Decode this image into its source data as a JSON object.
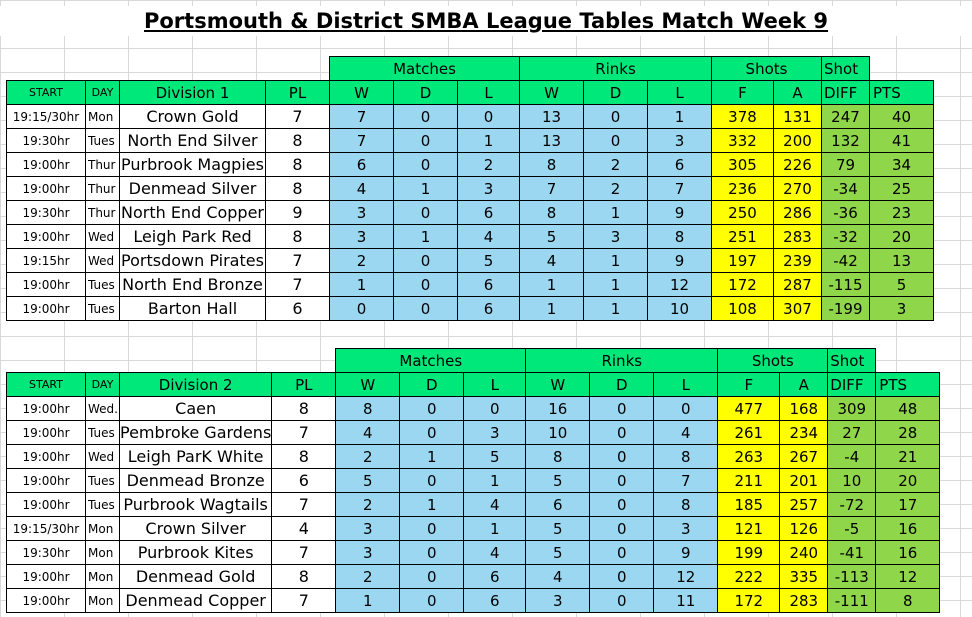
{
  "title": "Portsmouth & District SMBA League Tables Match Week 9",
  "group_headers": {
    "matches": "Matches",
    "rinks": "Rinks",
    "shots": "Shots",
    "shot_diff": "Shot"
  },
  "column_headers": {
    "start": "START",
    "day": "DAY",
    "pl": "PL",
    "w": "W",
    "d": "D",
    "l": "L",
    "f": "F",
    "a": "A",
    "diff": "DIFF",
    "pts": "PTS"
  },
  "colors": {
    "header_green": "#00e87a",
    "blue": "#9bd7f0",
    "yellow": "#ffff00",
    "green": "#8fd64a"
  },
  "divisions": [
    {
      "name": "Division 1",
      "rows": [
        {
          "start": "19:15/30hr",
          "day": "Mon",
          "team": "Crown Gold",
          "pl": "7",
          "mw": "7",
          "md": "0",
          "ml": "0",
          "rw": "13",
          "rd": "0",
          "rl": "1",
          "f": "378",
          "a": "131",
          "diff": "247",
          "pts": "40"
        },
        {
          "start": "19:30hr",
          "day": "Tues",
          "team": "North End Silver",
          "pl": "8",
          "mw": "7",
          "md": "0",
          "ml": "1",
          "rw": "13",
          "rd": "0",
          "rl": "3",
          "f": "332",
          "a": "200",
          "diff": "132",
          "pts": "41"
        },
        {
          "start": "19:00hr",
          "day": "Thur",
          "team": "Purbrook Magpies",
          "pl": "8",
          "mw": "6",
          "md": "0",
          "ml": "2",
          "rw": "8",
          "rd": "2",
          "rl": "6",
          "f": "305",
          "a": "226",
          "diff": "79",
          "pts": "34"
        },
        {
          "start": "19:00hr",
          "day": "Thur",
          "team": "Denmead Silver",
          "pl": "8",
          "mw": "4",
          "md": "1",
          "ml": "3",
          "rw": "7",
          "rd": "2",
          "rl": "7",
          "f": "236",
          "a": "270",
          "diff": "-34",
          "pts": "25"
        },
        {
          "start": "19:30hr",
          "day": "Thur",
          "team": "North End Copper",
          "pl": "9",
          "mw": "3",
          "md": "0",
          "ml": "6",
          "rw": "8",
          "rd": "1",
          "rl": "9",
          "f": "250",
          "a": "286",
          "diff": "-36",
          "pts": "23"
        },
        {
          "start": "19:00hr",
          "day": "Wed",
          "team": "Leigh Park Red",
          "pl": "8",
          "mw": "3",
          "md": "1",
          "ml": "4",
          "rw": "5",
          "rd": "3",
          "rl": "8",
          "f": "251",
          "a": "283",
          "diff": "-32",
          "pts": "20"
        },
        {
          "start": "19:15hr",
          "day": "Wed",
          "team": "Portsdown Pirates",
          "pl": "7",
          "mw": "2",
          "md": "0",
          "ml": "5",
          "rw": "4",
          "rd": "1",
          "rl": "9",
          "f": "197",
          "a": "239",
          "diff": "-42",
          "pts": "13"
        },
        {
          "start": "19:00hr",
          "day": "Tues",
          "team": "North End Bronze",
          "pl": "7",
          "mw": "1",
          "md": "0",
          "ml": "6",
          "rw": "1",
          "rd": "1",
          "rl": "12",
          "f": "172",
          "a": "287",
          "diff": "-115",
          "pts": "5"
        },
        {
          "start": "19:00hr",
          "day": "Tues",
          "team": "Barton Hall",
          "pl": "6",
          "mw": "0",
          "md": "0",
          "ml": "6",
          "rw": "1",
          "rd": "1",
          "rl": "10",
          "f": "108",
          "a": "307",
          "diff": "-199",
          "pts": "3"
        }
      ]
    },
    {
      "name": "Division 2",
      "rows": [
        {
          "start": "19:00hr",
          "day": "Wed.",
          "team": "Caen",
          "pl": "8",
          "mw": "8",
          "md": "0",
          "ml": "0",
          "rw": "16",
          "rd": "0",
          "rl": "0",
          "f": "477",
          "a": "168",
          "diff": "309",
          "pts": "48"
        },
        {
          "start": "19:00hr",
          "day": "Tues",
          "team": "Pembroke Gardens",
          "pl": "7",
          "mw": "4",
          "md": "0",
          "ml": "3",
          "rw": "10",
          "rd": "0",
          "rl": "4",
          "f": "261",
          "a": "234",
          "diff": "27",
          "pts": "28"
        },
        {
          "start": "19:00hr",
          "day": "Wed",
          "team": "Leigh ParK White",
          "pl": "8",
          "mw": "2",
          "md": "1",
          "ml": "5",
          "rw": "8",
          "rd": "0",
          "rl": "8",
          "f": "263",
          "a": "267",
          "diff": "-4",
          "pts": "21"
        },
        {
          "start": "19:00hr",
          "day": "Tues",
          "team": "Denmead Bronze",
          "pl": "6",
          "mw": "5",
          "md": "0",
          "ml": "1",
          "rw": "5",
          "rd": "0",
          "rl": "7",
          "f": "211",
          "a": "201",
          "diff": "10",
          "pts": "20"
        },
        {
          "start": "19:00hr",
          "day": "Tues",
          "team": "Purbrook Wagtails",
          "pl": "7",
          "mw": "2",
          "md": "1",
          "ml": "4",
          "rw": "6",
          "rd": "0",
          "rl": "8",
          "f": "185",
          "a": "257",
          "diff": "-72",
          "pts": "17"
        },
        {
          "start": "19:15/30hr",
          "day": "Mon",
          "team": "Crown Silver",
          "pl": "4",
          "mw": "3",
          "md": "0",
          "ml": "1",
          "rw": "5",
          "rd": "0",
          "rl": "3",
          "f": "121",
          "a": "126",
          "diff": "-5",
          "pts": "16"
        },
        {
          "start": "19:30hr",
          "day": "Mon",
          "team": "Purbrook Kites",
          "pl": "7",
          "mw": "3",
          "md": "0",
          "ml": "4",
          "rw": "5",
          "rd": "0",
          "rl": "9",
          "f": "199",
          "a": "240",
          "diff": "-41",
          "pts": "16"
        },
        {
          "start": "19:00hr",
          "day": "Mon",
          "team": "Denmead Gold",
          "pl": "8",
          "mw": "2",
          "md": "0",
          "ml": "6",
          "rw": "4",
          "rd": "0",
          "rl": "12",
          "f": "222",
          "a": "335",
          "diff": "-113",
          "pts": "12"
        },
        {
          "start": "19:00hr",
          "day": "Mon",
          "team": "Denmead Copper",
          "pl": "7",
          "mw": "1",
          "md": "0",
          "ml": "6",
          "rw": "3",
          "rd": "0",
          "rl": "11",
          "f": "172",
          "a": "283",
          "diff": "-111",
          "pts": "8"
        }
      ]
    }
  ]
}
